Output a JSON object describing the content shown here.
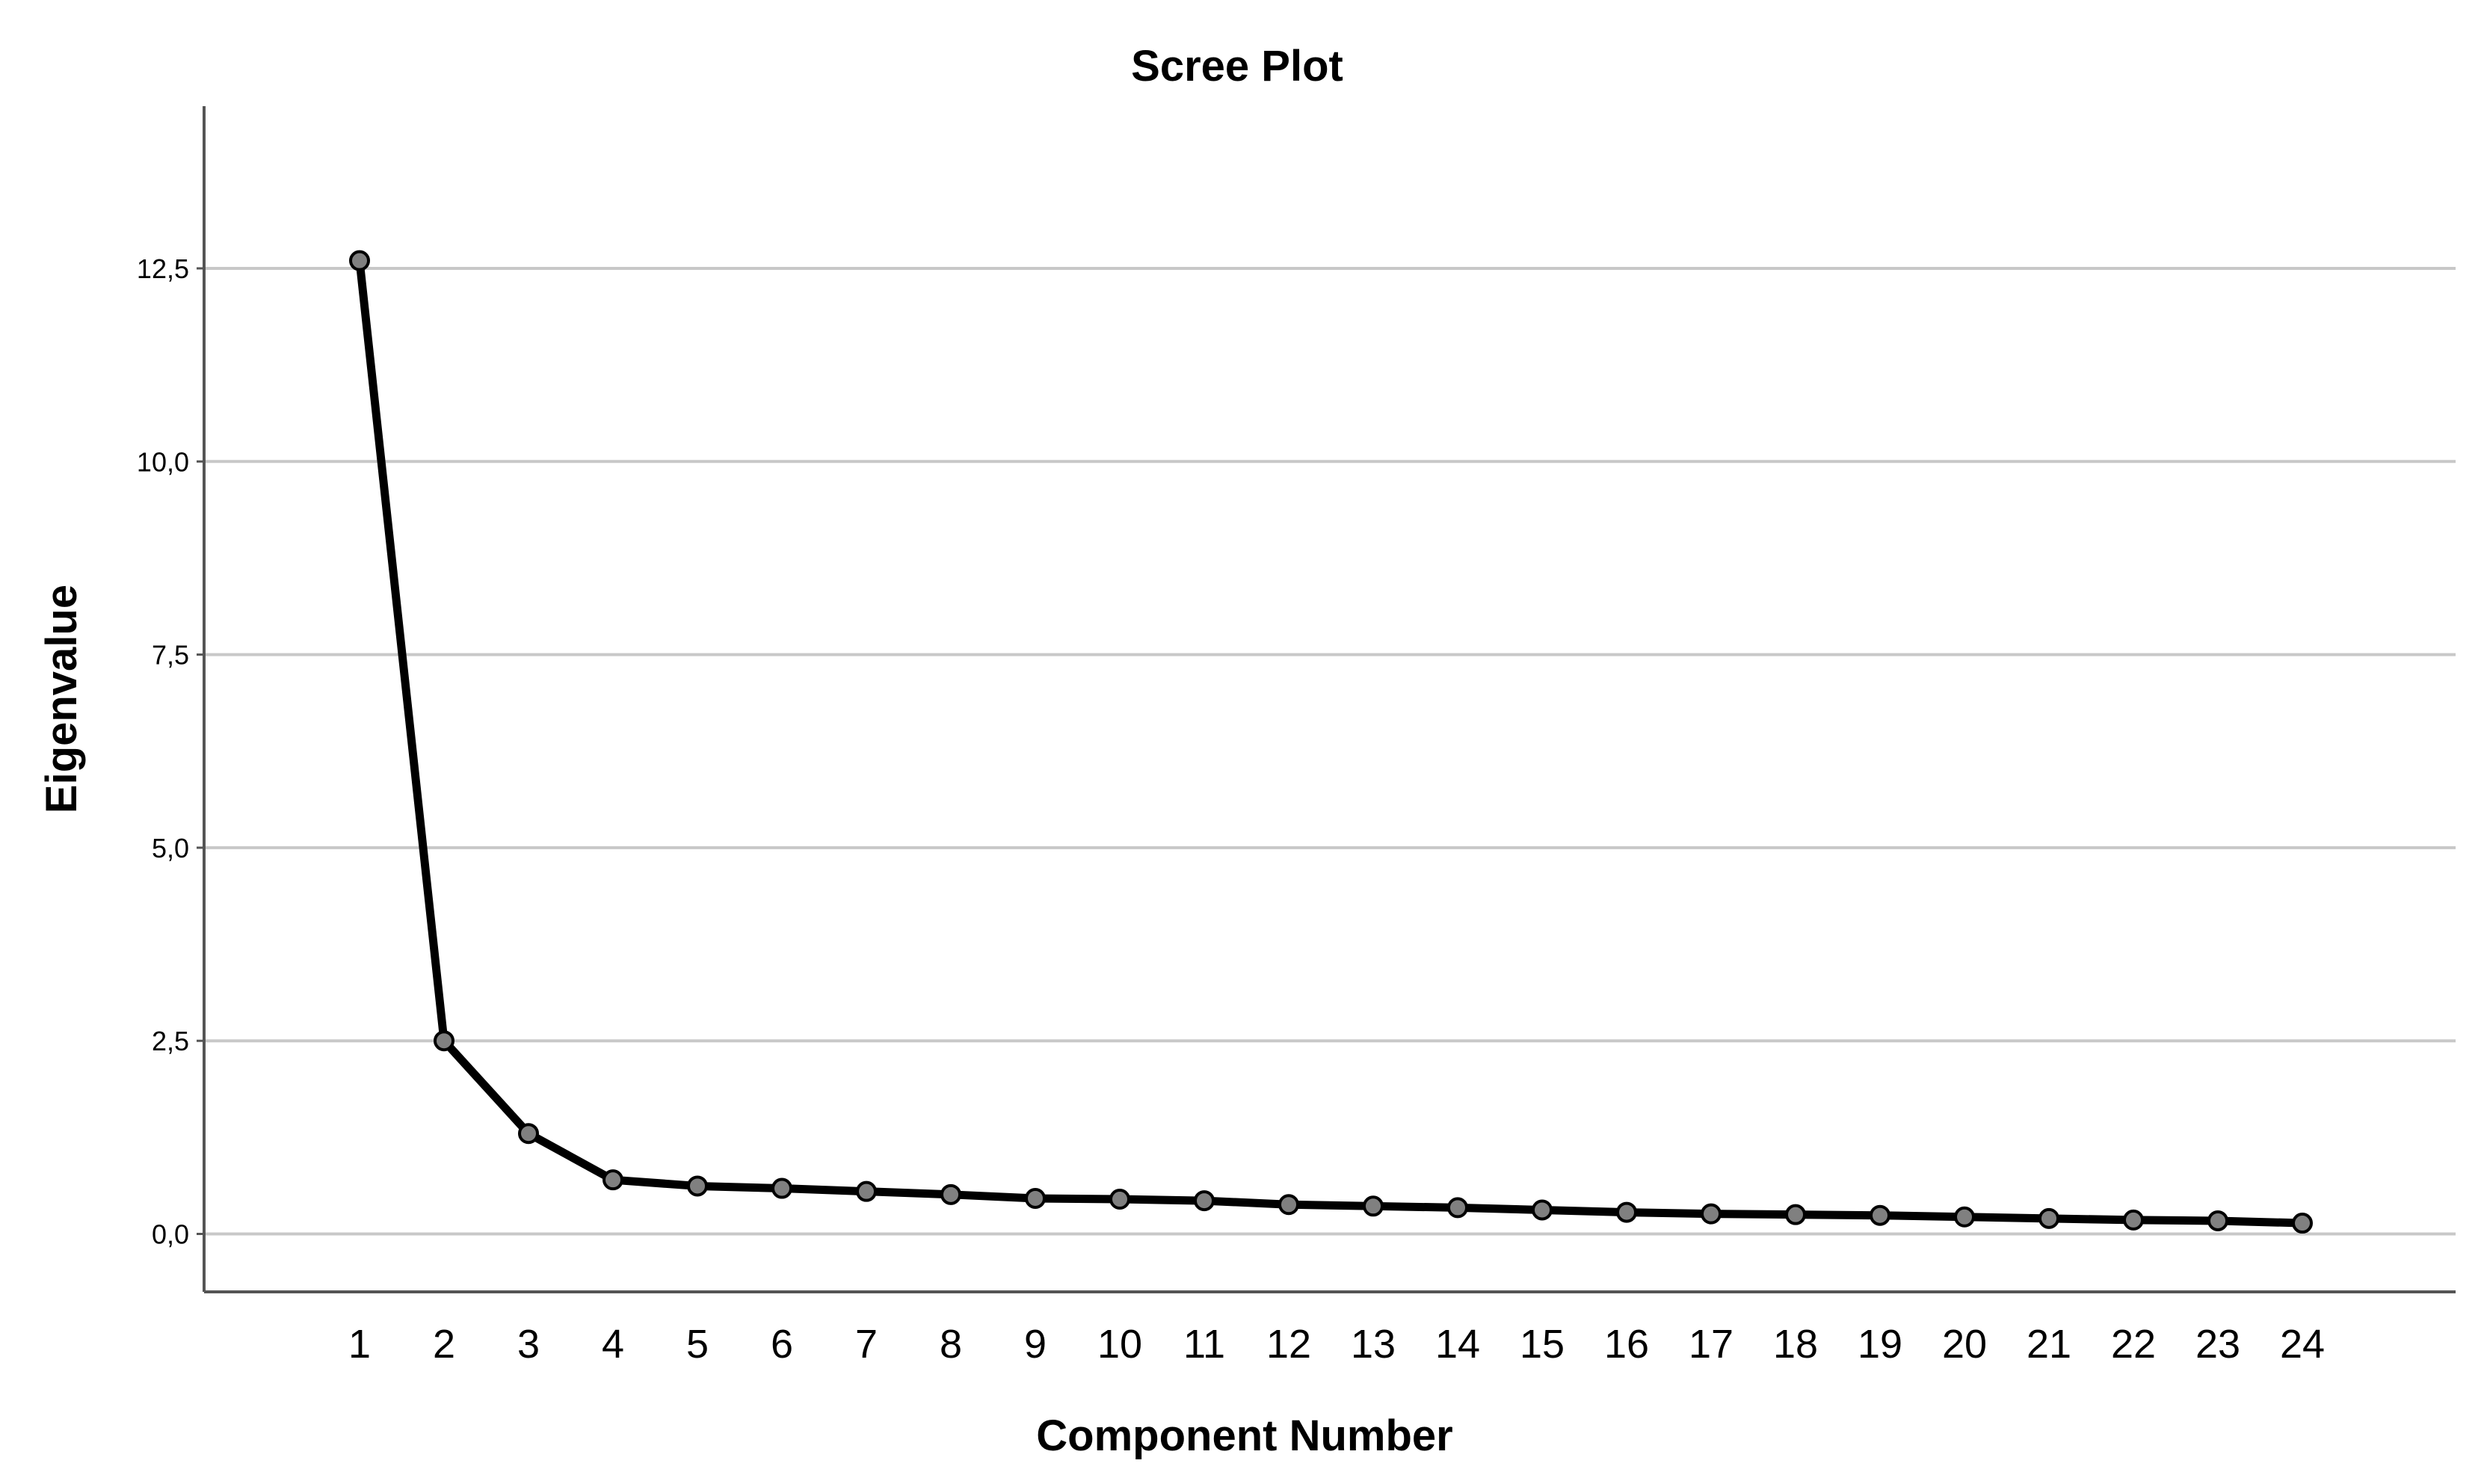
{
  "chart_data": {
    "type": "line",
    "title": "Scree Plot",
    "xlabel": "Component Number",
    "ylabel": "Eigenvalue",
    "categories": [
      "1",
      "2",
      "3",
      "4",
      "5",
      "6",
      "7",
      "8",
      "9",
      "10",
      "11",
      "12",
      "13",
      "14",
      "15",
      "16",
      "17",
      "18",
      "19",
      "20",
      "21",
      "22",
      "23",
      "24"
    ],
    "values": [
      12.6,
      2.5,
      1.3,
      0.7,
      0.62,
      0.59,
      0.55,
      0.51,
      0.46,
      0.45,
      0.43,
      0.38,
      0.36,
      0.34,
      0.31,
      0.28,
      0.26,
      0.25,
      0.24,
      0.22,
      0.2,
      0.18,
      0.17,
      0.14
    ],
    "ylim": [
      -0.75,
      14.6
    ],
    "yticks": [
      0,
      2.5,
      5,
      7.5,
      10,
      12.5
    ],
    "ytick_labels": [
      "0,0",
      "2,5",
      "5,0",
      "7,5",
      "10,0",
      "12,5"
    ],
    "grid": true,
    "colors": {
      "line": "#000000",
      "marker_fill": "#808080",
      "marker_stroke": "#000000",
      "grid": "#c8c8c8",
      "axis": "#555555"
    }
  }
}
